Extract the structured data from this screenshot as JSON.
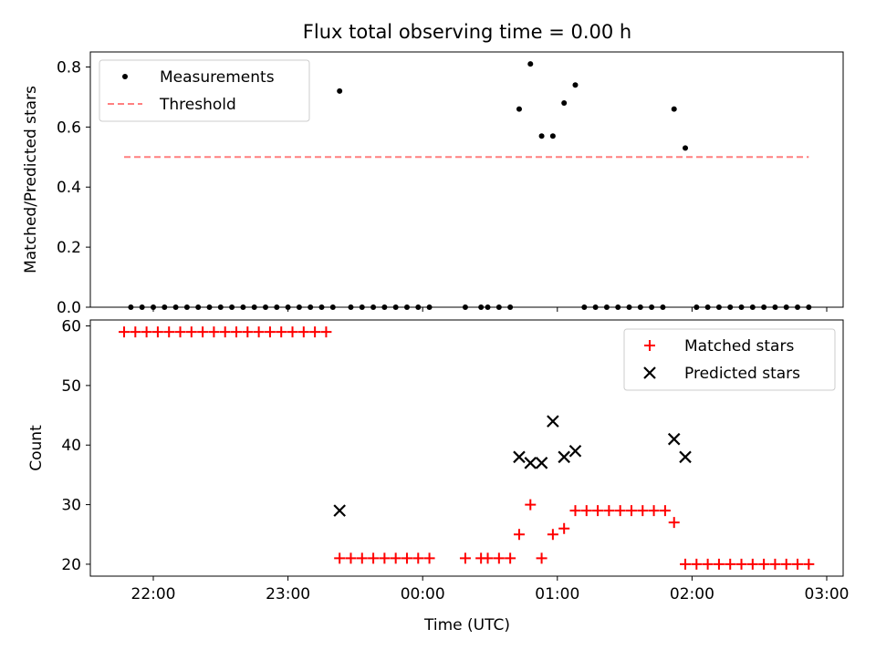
{
  "chart_data": [
    {
      "type": "scatter",
      "title": "Flux total observing time = 0.00 h",
      "xlabel": "",
      "ylabel": "Matched/Predicted stars",
      "ylim": [
        0,
        0.85
      ],
      "yticks": [
        "0.0",
        "0.2",
        "0.4",
        "0.6",
        "0.8"
      ],
      "legend_position": "upper-left",
      "series": [
        {
          "name": "Measurements",
          "marker": "dot",
          "color": "#000000",
          "points": [
            [
              "21:50",
              0.0
            ],
            [
              "21:55",
              0.0
            ],
            [
              "22:00",
              0.0
            ],
            [
              "22:05",
              0.0
            ],
            [
              "22:10",
              0.0
            ],
            [
              "22:15",
              0.0
            ],
            [
              "22:20",
              0.0
            ],
            [
              "22:25",
              0.0
            ],
            [
              "22:30",
              0.0
            ],
            [
              "22:35",
              0.0
            ],
            [
              "22:40",
              0.0
            ],
            [
              "22:45",
              0.0
            ],
            [
              "22:50",
              0.0
            ],
            [
              "22:55",
              0.0
            ],
            [
              "23:00",
              0.0
            ],
            [
              "23:05",
              0.0
            ],
            [
              "23:10",
              0.0
            ],
            [
              "23:15",
              0.0
            ],
            [
              "23:20",
              0.0
            ],
            [
              "23:23",
              0.72
            ],
            [
              "23:28",
              0.0
            ],
            [
              "23:33",
              0.0
            ],
            [
              "23:38",
              0.0
            ],
            [
              "23:43",
              0.0
            ],
            [
              "23:48",
              0.0
            ],
            [
              "23:53",
              0.0
            ],
            [
              "23:58",
              0.0
            ],
            [
              "00:03",
              0.0
            ],
            [
              "00:19",
              0.0
            ],
            [
              "00:26",
              0.0
            ],
            [
              "00:29",
              0.0
            ],
            [
              "00:34",
              0.0
            ],
            [
              "00:39",
              0.0
            ],
            [
              "00:43",
              0.66
            ],
            [
              "00:48",
              0.81
            ],
            [
              "00:53",
              0.57
            ],
            [
              "00:58",
              0.57
            ],
            [
              "01:03",
              0.68
            ],
            [
              "01:08",
              0.74
            ],
            [
              "01:12",
              0.0
            ],
            [
              "01:17",
              0.0
            ],
            [
              "01:22",
              0.0
            ],
            [
              "01:27",
              0.0
            ],
            [
              "01:32",
              0.0
            ],
            [
              "01:37",
              0.0
            ],
            [
              "01:42",
              0.0
            ],
            [
              "01:47",
              0.0
            ],
            [
              "01:52",
              0.66
            ],
            [
              "01:57",
              0.53
            ],
            [
              "02:02",
              0.0
            ],
            [
              "02:07",
              0.0
            ],
            [
              "02:12",
              0.0
            ],
            [
              "02:17",
              0.0
            ],
            [
              "02:22",
              0.0
            ],
            [
              "02:27",
              0.0
            ],
            [
              "02:32",
              0.0
            ],
            [
              "02:37",
              0.0
            ],
            [
              "02:42",
              0.0
            ],
            [
              "02:47",
              0.0
            ],
            [
              "02:52",
              0.0
            ]
          ]
        },
        {
          "name": "Threshold",
          "marker": "dashed-line",
          "color": "#ff7f7f",
          "points": [
            [
              "21:47",
              0.5
            ],
            [
              "02:52",
              0.5
            ]
          ]
        }
      ]
    },
    {
      "type": "scatter",
      "xlabel": "Time (UTC)",
      "ylabel": "Count",
      "ylim": [
        18,
        61
      ],
      "yticks": [
        "20",
        "30",
        "40",
        "50",
        "60"
      ],
      "xticks": [
        "22:00",
        "23:00",
        "00:00",
        "01:00",
        "02:00",
        "03:00"
      ],
      "legend_position": "upper-right",
      "series": [
        {
          "name": "Matched stars",
          "marker": "plus",
          "color": "#ff0000",
          "points": [
            [
              "21:47",
              59
            ],
            [
              "21:52",
              59
            ],
            [
              "21:57",
              59
            ],
            [
              "22:02",
              59
            ],
            [
              "22:07",
              59
            ],
            [
              "22:12",
              59
            ],
            [
              "22:17",
              59
            ],
            [
              "22:22",
              59
            ],
            [
              "22:27",
              59
            ],
            [
              "22:32",
              59
            ],
            [
              "22:37",
              59
            ],
            [
              "22:42",
              59
            ],
            [
              "22:47",
              59
            ],
            [
              "22:52",
              59
            ],
            [
              "22:57",
              59
            ],
            [
              "23:02",
              59
            ],
            [
              "23:07",
              59
            ],
            [
              "23:12",
              59
            ],
            [
              "23:17",
              59
            ],
            [
              "23:23",
              21
            ],
            [
              "23:28",
              21
            ],
            [
              "23:33",
              21
            ],
            [
              "23:38",
              21
            ],
            [
              "23:43",
              21
            ],
            [
              "23:48",
              21
            ],
            [
              "23:53",
              21
            ],
            [
              "23:58",
              21
            ],
            [
              "00:03",
              21
            ],
            [
              "00:19",
              21
            ],
            [
              "00:26",
              21
            ],
            [
              "00:29",
              21
            ],
            [
              "00:34",
              21
            ],
            [
              "00:39",
              21
            ],
            [
              "00:43",
              25
            ],
            [
              "00:48",
              30
            ],
            [
              "00:53",
              21
            ],
            [
              "00:58",
              25
            ],
            [
              "01:03",
              26
            ],
            [
              "01:08",
              29
            ],
            [
              "01:13",
              29
            ],
            [
              "01:18",
              29
            ],
            [
              "01:23",
              29
            ],
            [
              "01:28",
              29
            ],
            [
              "01:33",
              29
            ],
            [
              "01:38",
              29
            ],
            [
              "01:43",
              29
            ],
            [
              "01:48",
              29
            ],
            [
              "01:52",
              27
            ],
            [
              "01:57",
              20
            ],
            [
              "02:02",
              20
            ],
            [
              "02:07",
              20
            ],
            [
              "02:12",
              20
            ],
            [
              "02:17",
              20
            ],
            [
              "02:22",
              20
            ],
            [
              "02:27",
              20
            ],
            [
              "02:32",
              20
            ],
            [
              "02:37",
              20
            ],
            [
              "02:42",
              20
            ],
            [
              "02:47",
              20
            ],
            [
              "02:52",
              20
            ]
          ]
        },
        {
          "name": "Predicted stars",
          "marker": "x",
          "color": "#000000",
          "points": [
            [
              "23:23",
              29
            ],
            [
              "00:43",
              38
            ],
            [
              "00:48",
              37
            ],
            [
              "00:53",
              37
            ],
            [
              "00:58",
              44
            ],
            [
              "01:03",
              38
            ],
            [
              "01:08",
              39
            ],
            [
              "01:52",
              41
            ],
            [
              "01:57",
              38
            ]
          ]
        }
      ]
    }
  ]
}
